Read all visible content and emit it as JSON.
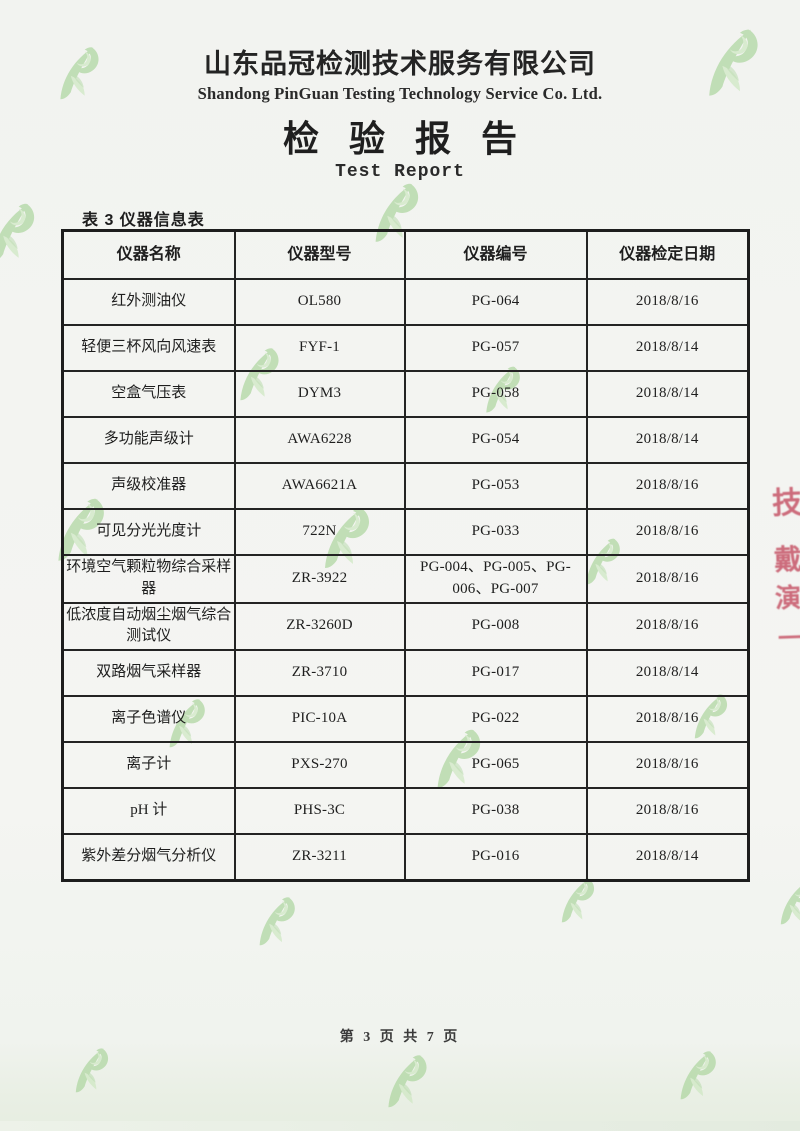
{
  "header": {
    "company_cn": "山东品冠检测技术服务有限公司",
    "company_en": "Shandong PinGuan Testing Technology Service Co. Ltd.",
    "report_title_cn": "检验报告",
    "report_title_en": "Test Report"
  },
  "table": {
    "caption": "表 3 仪器信息表",
    "headers": [
      "仪器名称",
      "仪器型号",
      "仪器编号",
      "仪器检定日期"
    ],
    "rows": [
      [
        "红外测油仪",
        "OL580",
        "PG-064",
        "2018/8/16"
      ],
      [
        "轻便三杯风向风速表",
        "FYF-1",
        "PG-057",
        "2018/8/14"
      ],
      [
        "空盒气压表",
        "DYM3",
        "PG-058",
        "2018/8/14"
      ],
      [
        "多功能声级计",
        "AWA6228",
        "PG-054",
        "2018/8/14"
      ],
      [
        "声级校准器",
        "AWA6621A",
        "PG-053",
        "2018/8/16"
      ],
      [
        "可见分光光度计",
        "722N",
        "PG-033",
        "2018/8/16"
      ],
      [
        "环境空气颗粒物综合采样器",
        "ZR-3922",
        "PG-004、PG-005、PG-006、PG-007",
        "2018/8/16"
      ],
      [
        "低浓度自动烟尘烟气综合测试仪",
        "ZR-3260D",
        "PG-008",
        "2018/8/16"
      ],
      [
        "双路烟气采样器",
        "ZR-3710",
        "PG-017",
        "2018/8/14"
      ],
      [
        "离子色谱仪",
        "PIC-10A",
        "PG-022",
        "2018/8/16"
      ],
      [
        "离子计",
        "PXS-270",
        "PG-065",
        "2018/8/16"
      ],
      [
        "pH 计",
        "PHS-3C",
        "PG-038",
        "2018/8/16"
      ],
      [
        "紫外差分烟气分析仪",
        "ZR-3211",
        "PG-016",
        "2018/8/14"
      ]
    ]
  },
  "footer": {
    "page_label": "第 3 页 共 7 页"
  },
  "watermark": {
    "icon": "pinguan-leaf-logo",
    "color_light": "#cfe8c3",
    "color_mid": "#aed6a0"
  },
  "stamp": {
    "color": "#c34b5f",
    "fragments": [
      "技",
      "戴",
      "演",
      "一"
    ]
  }
}
